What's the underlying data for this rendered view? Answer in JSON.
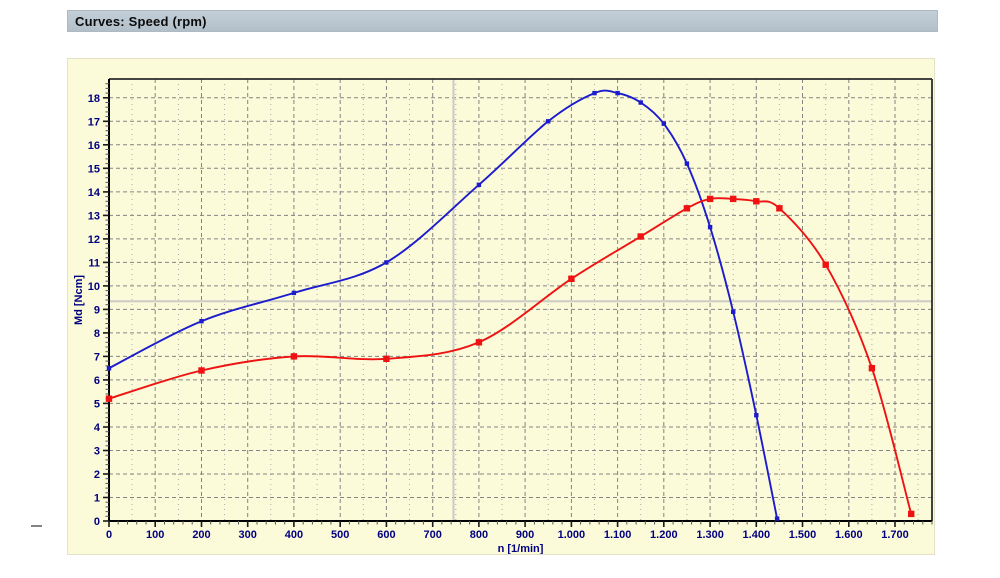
{
  "window": {
    "title": "Curves: Speed (rpm)"
  },
  "colors": {
    "title_bar_bg_top": "#c3cfd8",
    "title_bar_bg_bottom": "#b2bfc9",
    "panel_bg": "#fbfad9",
    "axis": "#000000",
    "frame": "#2b2b2b",
    "tick": "#1a1a1a",
    "tick_minor": "#555555",
    "tick_label": "#000080",
    "axis_title": "#000080",
    "grid_major": "#848484",
    "grid_minor": "#a9a9a9",
    "cursor_line": "#cbcbc6",
    "series_blue": "#1c1ccd",
    "series_red": "#ee1212"
  },
  "chart_data": {
    "type": "line",
    "title": "Curves: Speed (rpm)",
    "xlabel": "n [1/min]",
    "ylabel": "Md [Ncm]",
    "xlim": [
      0,
      1780
    ],
    "ylim": [
      0,
      18.8
    ],
    "grid": "dashed gray, major every 100 rpm and 1 Ncm, dotted minor every 50 rpm",
    "legend": "none",
    "x_major_tick_step": 100,
    "x_minor_tick_step": 20,
    "x_minor_grid_step": 50,
    "y_major_tick_step": 1,
    "y_minor_tick_step": 0.2,
    "x_tick_values": [
      0,
      100,
      200,
      300,
      400,
      500,
      600,
      700,
      800,
      900,
      1000,
      1100,
      1200,
      1300,
      1400,
      1500,
      1600,
      1700
    ],
    "x_tick_labels": [
      "0",
      "100",
      "200",
      "300",
      "400",
      "500",
      "600",
      "700",
      "800",
      "900",
      "1.000",
      "1.100",
      "1.200",
      "1.300",
      "1.400",
      "1.500",
      "1.600",
      "1.700"
    ],
    "y_tick_values": [
      0,
      1,
      2,
      3,
      4,
      5,
      6,
      7,
      8,
      9,
      10,
      11,
      12,
      13,
      14,
      15,
      16,
      17,
      18
    ],
    "y_tick_labels": [
      "0",
      "1",
      "2",
      "3",
      "4",
      "5",
      "6",
      "7",
      "8",
      "9",
      "10",
      "11",
      "12",
      "13",
      "14",
      "15",
      "16",
      "17",
      "18"
    ],
    "cursor": {
      "x_value": 745,
      "y_value": 9.35
    },
    "series": [
      {
        "name": "curve-blue",
        "color": "#1c1ccd",
        "marker": "square",
        "marker_size": 4.4,
        "points": [
          [
            0,
            6.5
          ],
          [
            200,
            8.5
          ],
          [
            400,
            9.7
          ],
          [
            600,
            11.0
          ],
          [
            800,
            14.3
          ],
          [
            950,
            17.0
          ],
          [
            1050,
            18.2
          ],
          [
            1100,
            18.2
          ],
          [
            1150,
            17.8
          ],
          [
            1200,
            16.9
          ],
          [
            1250,
            15.2
          ],
          [
            1300,
            12.5
          ],
          [
            1350,
            8.9
          ],
          [
            1400,
            4.5
          ],
          [
            1445,
            0.1
          ]
        ]
      },
      {
        "name": "curve-red",
        "color": "#ee1212",
        "marker": "square",
        "marker_size": 6.4,
        "points": [
          [
            0,
            5.2
          ],
          [
            200,
            6.4
          ],
          [
            400,
            7.0
          ],
          [
            600,
            6.9
          ],
          [
            800,
            7.6
          ],
          [
            1000,
            10.3
          ],
          [
            1150,
            12.1
          ],
          [
            1250,
            13.3
          ],
          [
            1300,
            13.7
          ],
          [
            1350,
            13.7
          ],
          [
            1400,
            13.6
          ],
          [
            1450,
            13.3
          ],
          [
            1550,
            10.9
          ],
          [
            1650,
            6.5
          ],
          [
            1735,
            0.3
          ]
        ]
      }
    ]
  }
}
